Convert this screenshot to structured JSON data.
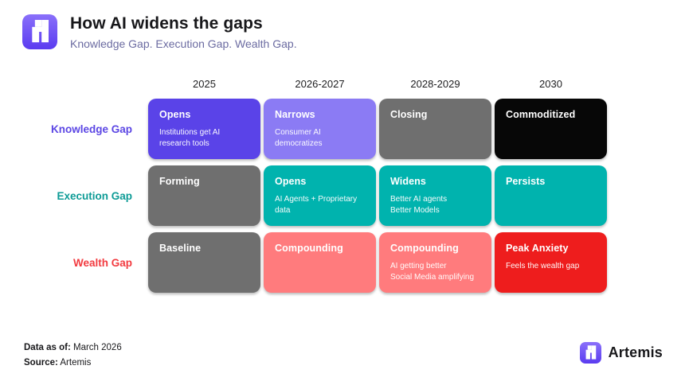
{
  "header": {
    "title": "How AI widens the gaps",
    "subtitle": "Knowledge Gap. Execution Gap. Wealth Gap."
  },
  "columns": [
    "2025",
    "2026-2027",
    "2028-2029",
    "2030"
  ],
  "rows": [
    {
      "label": "Knowledge Gap",
      "label_color": "#5b46e4",
      "cells": [
        {
          "title": "Opens",
          "subtitle": "Institutions get AI research tools",
          "bg": "#5a43e8"
        },
        {
          "title": "Narrows",
          "subtitle": "Consumer AI democratizes",
          "bg": "#8b7bf4"
        },
        {
          "title": "Closing",
          "subtitle": "",
          "bg": "#6f6f6f"
        },
        {
          "title": "Commoditized",
          "subtitle": "",
          "bg": "#070707"
        }
      ]
    },
    {
      "label": "Execution Gap",
      "label_color": "#0d9b96",
      "cells": [
        {
          "title": "Forming",
          "subtitle": "",
          "bg": "#6f6f6f"
        },
        {
          "title": "Opens",
          "subtitle": "AI Agents + Proprietary data",
          "bg": "#00b3ae"
        },
        {
          "title": "Widens",
          "subtitle": "Better AI agents\nBetter Models",
          "bg": "#00b3ae"
        },
        {
          "title": "Persists",
          "subtitle": "",
          "bg": "#00b3ae"
        }
      ]
    },
    {
      "label": "Wealth Gap",
      "label_color": "#f23b40",
      "cells": [
        {
          "title": "Baseline",
          "subtitle": "",
          "bg": "#6f6f6f"
        },
        {
          "title": "Compounding",
          "subtitle": "",
          "bg": "#ff7b7d"
        },
        {
          "title": "Compounding",
          "subtitle": "AI getting better\nSocial Media amplifying",
          "bg": "#ff7b7d"
        },
        {
          "title": "Peak Anxiety",
          "subtitle": "Feels the wealth gap",
          "bg": "#ee1d1d"
        }
      ]
    }
  ],
  "footer": {
    "data_as_of_label": "Data as of:",
    "data_as_of_value": " March 2026",
    "source_label": "Source:",
    "source_value": " Artemis",
    "brand": "Artemis"
  },
  "colors": {
    "accent_purple": "#5a43e8",
    "accent_light_purple": "#8b7bf4",
    "accent_teal": "#00b3ae",
    "accent_salmon": "#ff7b7d",
    "accent_red": "#ee1d1d",
    "neutral_gray": "#6f6f6f",
    "neutral_black": "#070707"
  }
}
